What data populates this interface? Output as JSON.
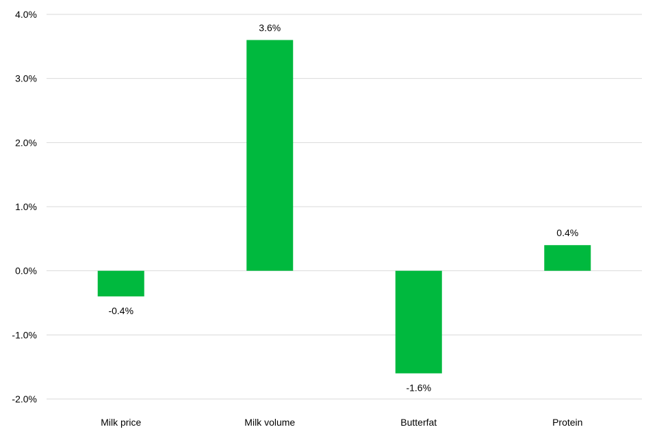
{
  "chart_data": {
    "type": "bar",
    "title": "",
    "xlabel": "",
    "ylabel": "",
    "categories": [
      "Milk price",
      "Milk volume",
      "Butterfat",
      "Protein"
    ],
    "values": [
      -0.4,
      3.6,
      -1.6,
      0.4
    ],
    "data_labels": [
      "-0.4%",
      "3.6%",
      "-1.6%",
      "0.4%"
    ],
    "ylim": [
      -2.0,
      4.0
    ],
    "y_ticks": [
      4.0,
      3.0,
      2.0,
      1.0,
      0.0,
      -1.0,
      -2.0
    ],
    "y_tick_labels": [
      "4.0%",
      "3.0%",
      "2.0%",
      "1.0%",
      "0.0%",
      "-1.0%",
      "-2.0%"
    ],
    "grid": true,
    "legend": "none",
    "bar_color": "#00b93e",
    "grid_color": "#d9d9d9"
  }
}
